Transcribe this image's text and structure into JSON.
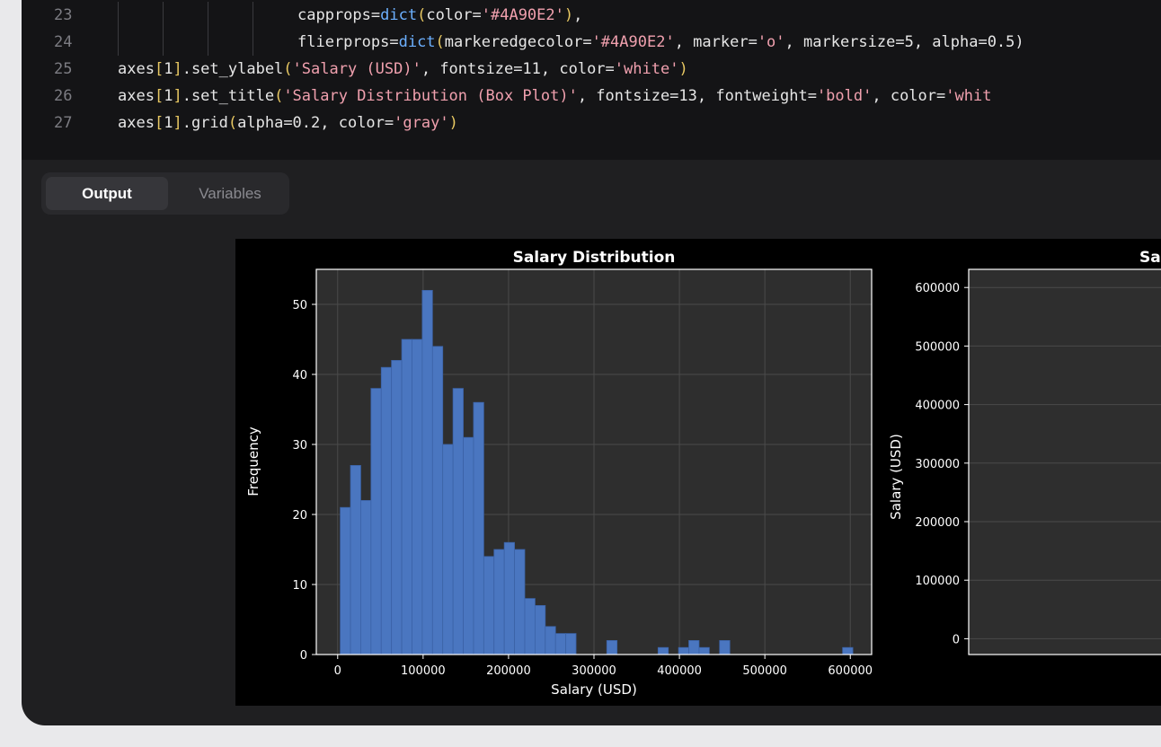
{
  "editor": {
    "lines": [
      {
        "num": "23",
        "indent": 3,
        "tokens": [
          {
            "t": "capprops=",
            "c": "plain"
          },
          {
            "t": "dict",
            "c": "fn"
          },
          {
            "t": "(",
            "c": "br"
          },
          {
            "t": "color=",
            "c": "plain"
          },
          {
            "t": "'#4A90E2'",
            "c": "str"
          },
          {
            "t": ")",
            "c": "br"
          },
          {
            "t": ",",
            "c": "plain"
          }
        ]
      },
      {
        "num": "24",
        "indent": 3,
        "tokens": [
          {
            "t": "flierprops=",
            "c": "plain"
          },
          {
            "t": "dict",
            "c": "fn"
          },
          {
            "t": "(",
            "c": "br"
          },
          {
            "t": "markeredgecolor=",
            "c": "plain"
          },
          {
            "t": "'#4A90E2'",
            "c": "str"
          },
          {
            "t": ", marker=",
            "c": "plain"
          },
          {
            "t": "'o'",
            "c": "str"
          },
          {
            "t": ", markersize=5, alpha=0.5)",
            "c": "plain"
          }
        ]
      },
      {
        "num": "25",
        "indent": 0,
        "tokens": [
          {
            "t": "axes",
            "c": "plain"
          },
          {
            "t": "[",
            "c": "br"
          },
          {
            "t": "1",
            "c": "plain"
          },
          {
            "t": "]",
            "c": "br"
          },
          {
            "t": ".set_ylabel",
            "c": "plain"
          },
          {
            "t": "(",
            "c": "br"
          },
          {
            "t": "'Salary (USD)'",
            "c": "str"
          },
          {
            "t": ", fontsize=11, color=",
            "c": "plain"
          },
          {
            "t": "'white'",
            "c": "str"
          },
          {
            "t": ")",
            "c": "br"
          }
        ]
      },
      {
        "num": "26",
        "indent": 0,
        "tokens": [
          {
            "t": "axes",
            "c": "plain"
          },
          {
            "t": "[",
            "c": "br"
          },
          {
            "t": "1",
            "c": "plain"
          },
          {
            "t": "]",
            "c": "br"
          },
          {
            "t": ".set_title",
            "c": "plain"
          },
          {
            "t": "(",
            "c": "br"
          },
          {
            "t": "'Salary Distribution (Box Plot)'",
            "c": "str"
          },
          {
            "t": ", fontsize=13, fontweight=",
            "c": "plain"
          },
          {
            "t": "'bold'",
            "c": "str"
          },
          {
            "t": ", color=",
            "c": "plain"
          },
          {
            "t": "'whit",
            "c": "str"
          }
        ]
      },
      {
        "num": "27",
        "indent": 0,
        "tokens": [
          {
            "t": "axes",
            "c": "plain"
          },
          {
            "t": "[",
            "c": "br"
          },
          {
            "t": "1",
            "c": "plain"
          },
          {
            "t": "]",
            "c": "br"
          },
          {
            "t": ".grid",
            "c": "plain"
          },
          {
            "t": "(",
            "c": "br"
          },
          {
            "t": "alpha=0.2, color=",
            "c": "plain"
          },
          {
            "t": "'gray'",
            "c": "str"
          },
          {
            "t": ")",
            "c": "br"
          }
        ]
      }
    ]
  },
  "output_tabs": [
    {
      "label": "Output",
      "active": true
    },
    {
      "label": "Variables",
      "active": false
    }
  ],
  "colors": {
    "bar": "#4a76c0",
    "bar_edge": "#3b62a6",
    "axes_bg": "#2e2e2e",
    "grid": "#4a4a4a",
    "text": "#ffffff"
  },
  "chart_data": [
    {
      "type": "bar",
      "title": "Salary Distribution",
      "xlabel": "Salary (USD)",
      "ylabel": "Frequency",
      "xlim": [
        -25000,
        625000
      ],
      "ylim": [
        0,
        55
      ],
      "xticks": [
        0,
        100000,
        200000,
        300000,
        400000,
        500000,
        600000
      ],
      "yticks": [
        0,
        10,
        20,
        30,
        40,
        50
      ],
      "grid": true,
      "bin_width": 12000,
      "bins": [
        {
          "x": 3000,
          "count": 21
        },
        {
          "x": 15000,
          "count": 27
        },
        {
          "x": 27000,
          "count": 22
        },
        {
          "x": 39000,
          "count": 38
        },
        {
          "x": 51000,
          "count": 41
        },
        {
          "x": 63000,
          "count": 42
        },
        {
          "x": 75000,
          "count": 45
        },
        {
          "x": 87000,
          "count": 45
        },
        {
          "x": 99000,
          "count": 52
        },
        {
          "x": 111000,
          "count": 44
        },
        {
          "x": 123000,
          "count": 30
        },
        {
          "x": 135000,
          "count": 38
        },
        {
          "x": 147000,
          "count": 31
        },
        {
          "x": 159000,
          "count": 36
        },
        {
          "x": 171000,
          "count": 14
        },
        {
          "x": 183000,
          "count": 15
        },
        {
          "x": 195000,
          "count": 16
        },
        {
          "x": 207000,
          "count": 15
        },
        {
          "x": 219000,
          "count": 8
        },
        {
          "x": 231000,
          "count": 7
        },
        {
          "x": 243000,
          "count": 4
        },
        {
          "x": 255000,
          "count": 3
        },
        {
          "x": 267000,
          "count": 3
        },
        {
          "x": 315000,
          "count": 2
        },
        {
          "x": 375000,
          "count": 1
        },
        {
          "x": 399000,
          "count": 1
        },
        {
          "x": 411000,
          "count": 2
        },
        {
          "x": 423000,
          "count": 1
        },
        {
          "x": 447000,
          "count": 2
        },
        {
          "x": 591000,
          "count": 1
        }
      ]
    },
    {
      "type": "box",
      "title": "Salar",
      "ylabel": "Salary (USD)",
      "ylim": [
        -27000,
        631000
      ],
      "yticks": [
        0,
        100000,
        200000,
        300000,
        400000,
        500000,
        600000
      ],
      "grid": true
    }
  ]
}
